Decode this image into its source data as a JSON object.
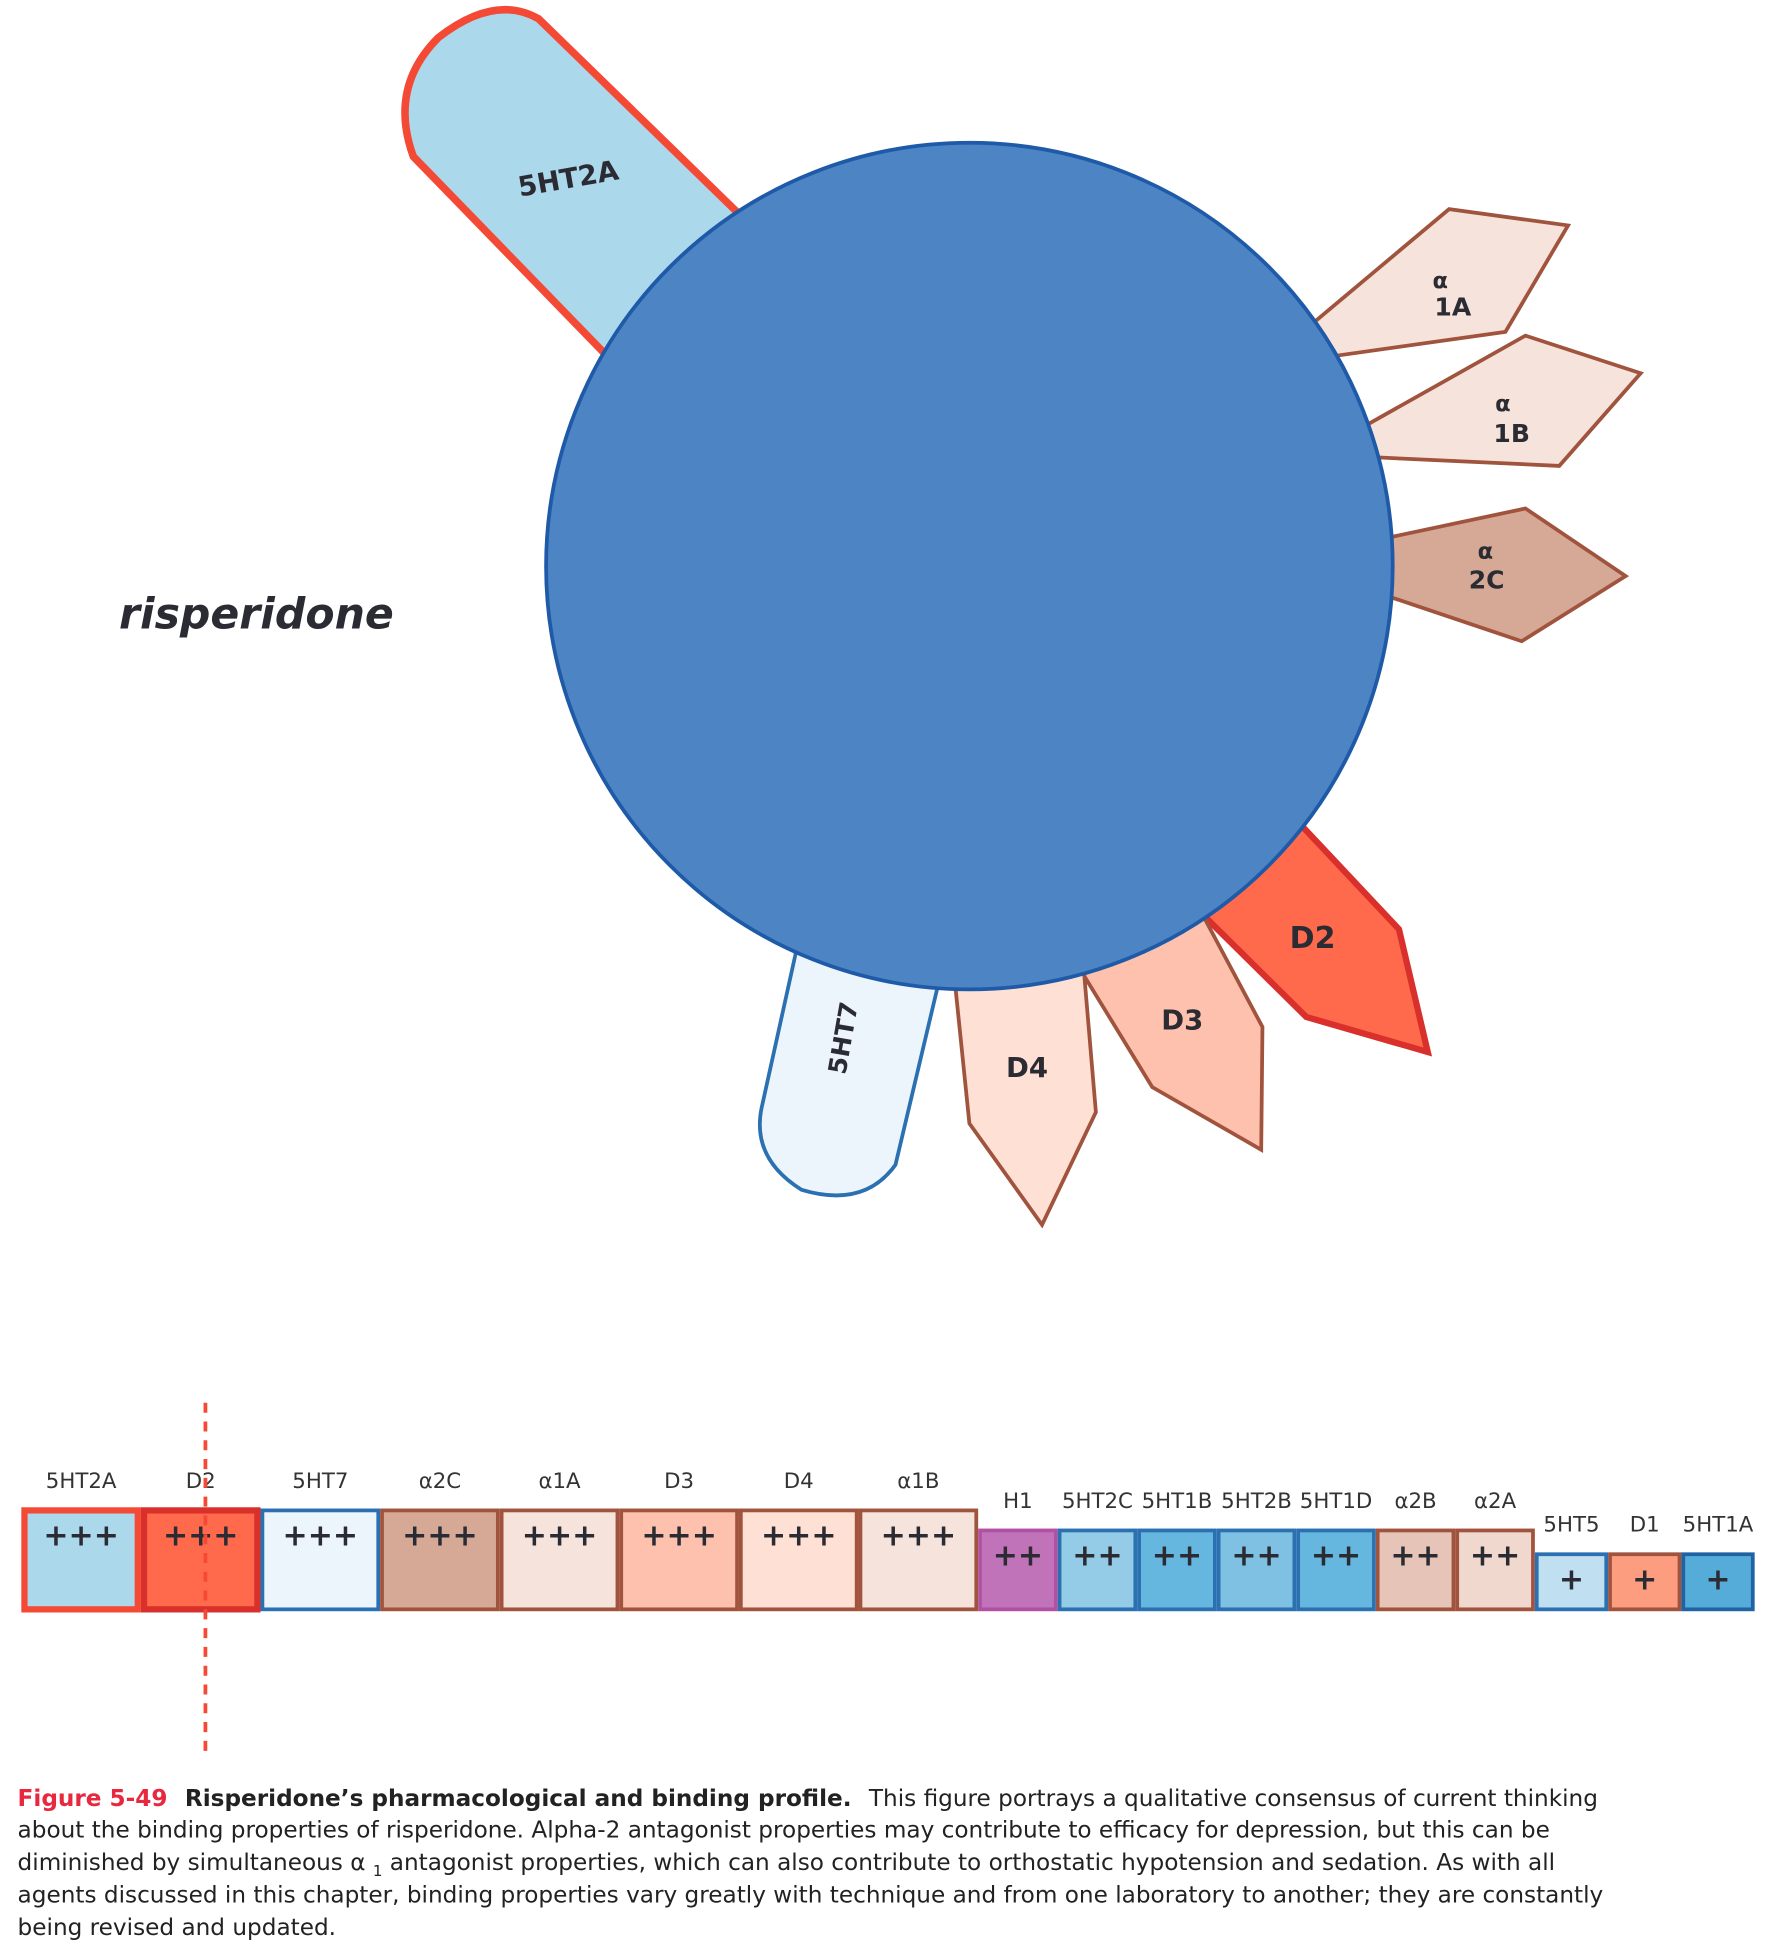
{
  "drug_name": "risperidone",
  "diagram_labels": {
    "r5ht2a": "5HT2A",
    "a1a_1": "α",
    "a1a_2": "1A",
    "a1b_1": "α",
    "a1b_2": "1B",
    "a2c_1": "α",
    "a2c_2": "2C",
    "d2": "D2",
    "d3": "D3",
    "d4": "D4",
    "r5ht7": "5HT7"
  },
  "binding_strip": [
    {
      "label": "5HT2A",
      "plus": "+++",
      "fill": "#acd8ec",
      "stroke": "#f44a35",
      "level": 3
    },
    {
      "label": "D2",
      "plus": "+++",
      "fill": "#ff6a4d",
      "stroke": "#d9302c",
      "level": 3
    },
    {
      "label": "5HT7",
      "plus": "+++",
      "fill": "#edf5fc",
      "stroke": "#2b70b0",
      "level": 3
    },
    {
      "label": "α2C",
      "plus": "+++",
      "fill": "#d6a896",
      "stroke": "#a0533d",
      "level": 3
    },
    {
      "label": "α1A",
      "plus": "+++",
      "fill": "#f5e3dc",
      "stroke": "#a0533d",
      "level": 3
    },
    {
      "label": "D3",
      "plus": "+++",
      "fill": "#fec1ad",
      "stroke": "#a0533d",
      "level": 3
    },
    {
      "label": "D4",
      "plus": "+++",
      "fill": "#ffe0d5",
      "stroke": "#a0533d",
      "level": 3
    },
    {
      "label": "α1B",
      "plus": "+++",
      "fill": "#f5e3dc",
      "stroke": "#a0533d",
      "level": 3
    },
    {
      "label": "H1",
      "plus": "++",
      "fill": "#c073b8",
      "stroke": "#b251a4",
      "level": 2
    },
    {
      "label": "5HT2C",
      "plus": "++",
      "fill": "#94cbe7",
      "stroke": "#2b70b0",
      "level": 2
    },
    {
      "label": "5HT1B",
      "plus": "++",
      "fill": "#66b7df",
      "stroke": "#2b70b0",
      "level": 2
    },
    {
      "label": "5HT2B",
      "plus": "++",
      "fill": "#7fc1e3",
      "stroke": "#2b70b0",
      "level": 2
    },
    {
      "label": "5HT1D",
      "plus": "++",
      "fill": "#66b7df",
      "stroke": "#2b70b0",
      "level": 2
    },
    {
      "label": "α2B",
      "plus": "++",
      "fill": "#e6c5b8",
      "stroke": "#a0533d",
      "level": 2
    },
    {
      "label": "α2A",
      "plus": "++",
      "fill": "#f0d8cf",
      "stroke": "#a0533d",
      "level": 2
    },
    {
      "label": "5HT5",
      "plus": "+",
      "fill": "#c0e0f2",
      "stroke": "#2b70b0",
      "level": 1
    },
    {
      "label": "D1",
      "plus": "+",
      "fill": "#fd9d80",
      "stroke": "#a0533d",
      "level": 1
    },
    {
      "label": "5HT1A",
      "plus": "+",
      "fill": "#56acd9",
      "stroke": "#1f63a5",
      "level": 1
    }
  ],
  "caption": {
    "figure_label": "Figure 5-49",
    "title": "Risperidone’s pharmacological and binding profile.",
    "line1": "This figure portrays a qualitative consensus of current thinking",
    "line2": "about the binding properties of risperidone. Alpha-2 antagonist properties may contribute to efficacy for depression, but this can be",
    "line3a": "diminished by simultaneous α",
    "line3sub": "1",
    "line3b": " antagonist properties, which can also contribute to orthostatic hypotension and sedation. As with all",
    "line4": "agents discussed in this chapter, binding properties vary greatly with technique and from one laboratory to another; they are constantly",
    "line5": "being revised and updated."
  }
}
